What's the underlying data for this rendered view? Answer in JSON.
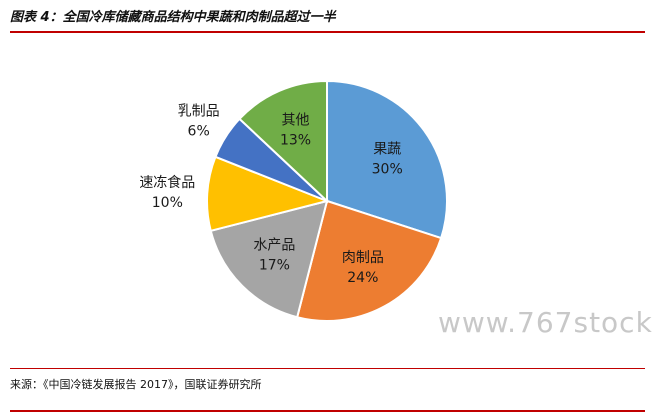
{
  "header": {
    "title": "图表 4：全国冷库储藏商品结构中果蔬和肉制品超过一半"
  },
  "footer": {
    "source": "来源：《中国冷链发展报告 2017》，国联证券研究所"
  },
  "watermark": "www.767stock.",
  "chart_data": {
    "type": "pie",
    "title": "",
    "slices": [
      {
        "name": "果蔬",
        "value": 30,
        "label": "30%",
        "color": "#5b9bd5"
      },
      {
        "name": "肉制品",
        "value": 24,
        "label": "24%",
        "color": "#ed7d31"
      },
      {
        "name": "水产品",
        "value": 17,
        "label": "17%",
        "color": "#a5a5a5"
      },
      {
        "name": "速冻食品",
        "value": 10,
        "label": "10%",
        "color": "#ffc000"
      },
      {
        "name": "乳制品",
        "value": 6,
        "label": "6%",
        "color": "#4472c4"
      },
      {
        "name": "其他",
        "value": 13,
        "label": "13%",
        "color": "#70ad47"
      }
    ]
  }
}
